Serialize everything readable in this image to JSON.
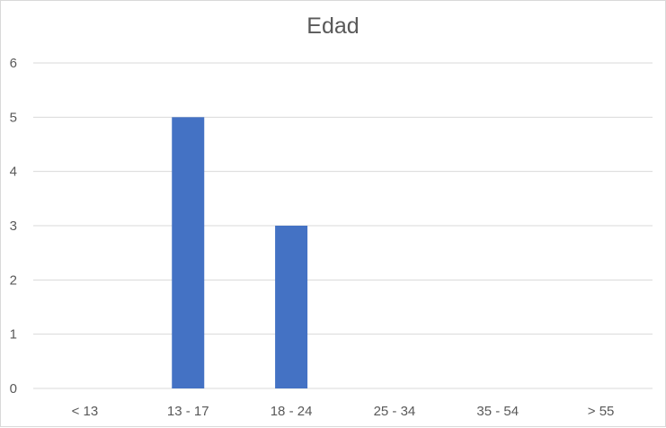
{
  "chart_data": {
    "type": "bar",
    "title": "Edad",
    "categories": [
      "< 13",
      "13 - 17",
      "18 - 24",
      "25 - 34",
      "35 - 54",
      "> 55"
    ],
    "values": [
      0,
      5,
      3,
      0,
      0,
      0
    ],
    "yticks": [
      0,
      1,
      2,
      3,
      4,
      5,
      6
    ],
    "ylim": [
      0,
      6
    ],
    "xlabel": "",
    "ylabel": "",
    "grid": true,
    "legend": "none",
    "bar_color": "#4472c4",
    "grid_color": "#d9d9d9"
  }
}
